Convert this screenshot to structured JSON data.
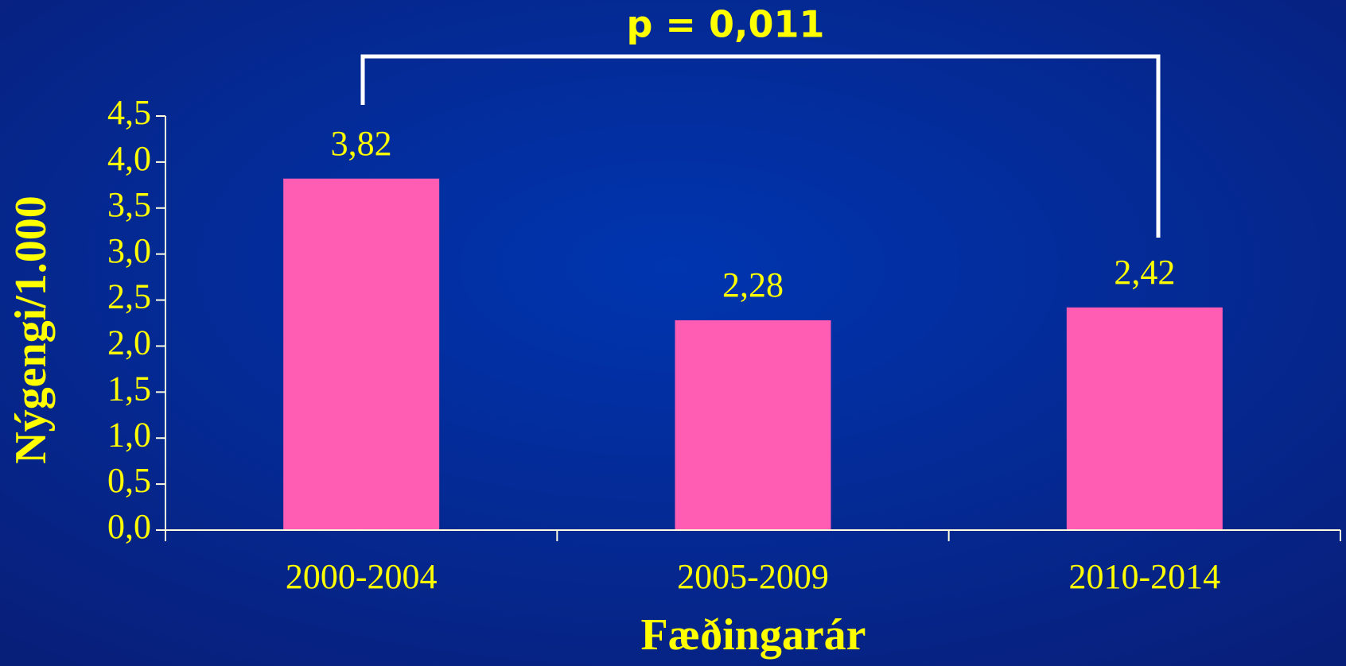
{
  "chart_data": {
    "type": "bar",
    "annotation": "p = 0,011",
    "ylabel": "Nýgengi/1.000",
    "xlabel": "Fæðingarár",
    "categories": [
      "2000-2004",
      "2005-2009",
      "2010-2014"
    ],
    "values": [
      3.82,
      2.28,
      2.42
    ],
    "value_labels": [
      "3,82",
      "2,28",
      "2,42"
    ],
    "color": "#ff5cb4",
    "ylim": [
      0,
      4.5
    ],
    "yticks": [
      {
        "value": 0,
        "label": "0,0"
      },
      {
        "value": 0.5,
        "label": "0,5"
      },
      {
        "value": 1,
        "label": "1,0"
      },
      {
        "value": 1.5,
        "label": "1,5"
      },
      {
        "value": 2,
        "label": "2,0"
      },
      {
        "value": 2.5,
        "label": "2,5"
      },
      {
        "value": 3,
        "label": "3,0"
      },
      {
        "value": 3.5,
        "label": "3,5"
      },
      {
        "value": 4,
        "label": "4,0"
      },
      {
        "value": 4.5,
        "label": "4,5"
      }
    ]
  }
}
